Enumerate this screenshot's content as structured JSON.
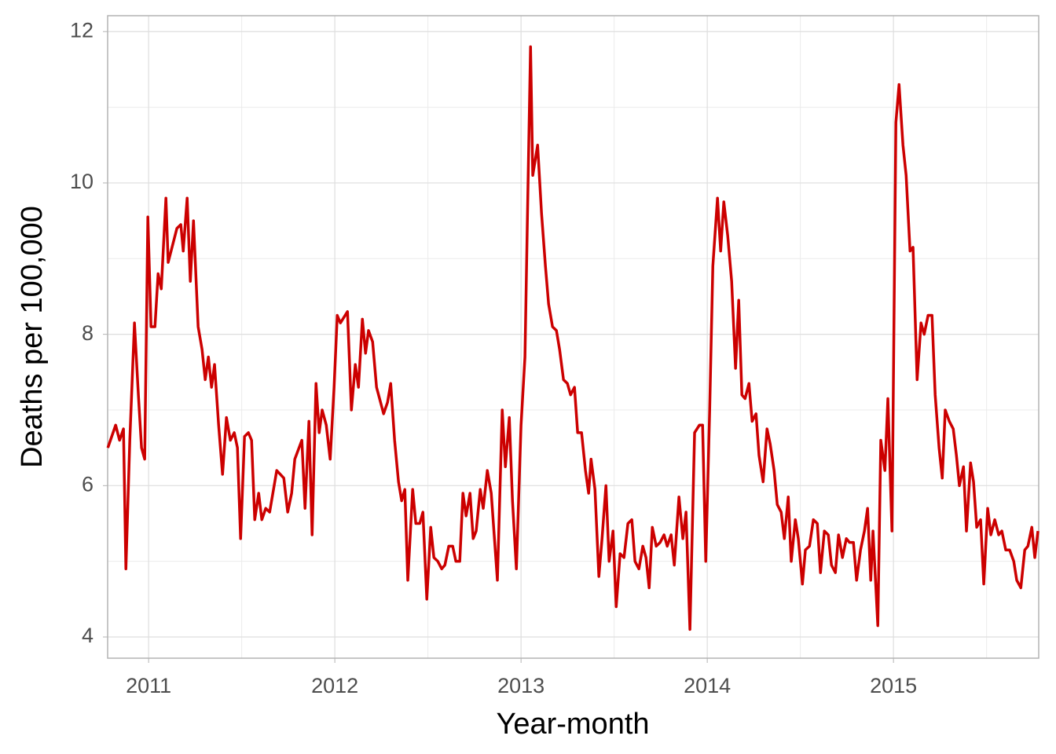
{
  "chart_data": {
    "type": "line",
    "xlabel": "Year-month",
    "ylabel": "Deaths per 100,000",
    "xlim": [
      2010.78,
      2015.78
    ],
    "ylim": [
      3.72,
      12.21
    ],
    "xticks": [
      2011,
      2012,
      2013,
      2014,
      2015
    ],
    "yticks": [
      4,
      6,
      8,
      10,
      12
    ],
    "xminor": [
      2011.5,
      2012.5,
      2013.5,
      2014.5,
      2015.5
    ],
    "yminor": [
      5,
      7,
      9,
      11
    ],
    "grid": true,
    "series": [
      {
        "color": "#cc0000",
        "x": [
          2010.781,
          2010.823,
          2010.844,
          2010.865,
          2010.878,
          2010.899,
          2010.924,
          2010.945,
          2010.962,
          2010.979,
          2010.996,
          2011.013,
          2011.034,
          2011.051,
          2011.068,
          2011.093,
          2011.105,
          2011.131,
          2011.152,
          2011.173,
          2011.186,
          2011.207,
          2011.224,
          2011.241,
          2011.266,
          2011.287,
          2011.304,
          2011.321,
          2011.338,
          2011.354,
          2011.376,
          2011.397,
          2011.418,
          2011.439,
          2011.46,
          2011.477,
          2011.494,
          2011.515,
          2011.536,
          2011.553,
          2011.57,
          2011.591,
          2011.608,
          2011.629,
          2011.65,
          2011.688,
          2011.726,
          2011.747,
          2011.768,
          2011.785,
          2011.823,
          2011.84,
          2011.861,
          2011.878,
          2011.899,
          2011.916,
          2011.932,
          2011.954,
          2011.975,
          2011.996,
          2012.013,
          2012.03,
          2012.068,
          2012.089,
          2012.11,
          2012.127,
          2012.148,
          2012.165,
          2012.181,
          2012.203,
          2012.224,
          2012.262,
          2012.283,
          2012.3,
          2012.321,
          2012.342,
          2012.359,
          2012.376,
          2012.392,
          2012.418,
          2012.435,
          2012.456,
          2012.473,
          2012.494,
          2012.515,
          2012.532,
          2012.553,
          2012.574,
          2012.591,
          2012.612,
          2012.633,
          2012.65,
          2012.671,
          2012.688,
          2012.705,
          2012.726,
          2012.743,
          2012.759,
          2012.781,
          2012.797,
          2012.819,
          2012.84,
          2012.873,
          2012.899,
          2012.916,
          2012.937,
          2012.954,
          2012.975,
          2013.0,
          2013.021,
          2013.034,
          2013.051,
          2013.063,
          2013.089,
          2013.11,
          2013.131,
          2013.148,
          2013.169,
          2013.19,
          2013.207,
          2013.228,
          2013.249,
          2013.266,
          2013.287,
          2013.304,
          2013.325,
          2013.346,
          2013.363,
          2013.376,
          2013.397,
          2013.418,
          2013.435,
          2013.456,
          2013.473,
          2013.494,
          2013.511,
          2013.532,
          2013.553,
          2013.574,
          2013.595,
          2013.612,
          2013.633,
          2013.654,
          2013.671,
          2013.688,
          2013.705,
          2013.726,
          2013.747,
          2013.768,
          2013.785,
          2013.806,
          2013.823,
          2013.848,
          2013.869,
          2013.886,
          2013.907,
          2013.932,
          2013.958,
          2013.975,
          2013.992,
          2014.013,
          2014.03,
          2014.055,
          2014.072,
          2014.089,
          2014.11,
          2014.131,
          2014.152,
          2014.169,
          2014.186,
          2014.203,
          2014.224,
          2014.241,
          2014.262,
          2014.278,
          2014.3,
          2014.321,
          2014.338,
          2014.359,
          2014.376,
          2014.397,
          2014.414,
          2014.435,
          2014.451,
          2014.473,
          2014.489,
          2014.511,
          2014.527,
          2014.549,
          2014.57,
          2014.591,
          2014.608,
          2014.629,
          2014.65,
          2014.667,
          2014.688,
          2014.705,
          2014.726,
          2014.747,
          2014.764,
          2014.785,
          2014.802,
          2014.823,
          2014.844,
          2014.861,
          2014.878,
          2014.89,
          2014.916,
          2014.932,
          2014.954,
          2014.97,
          2014.992,
          2015.013,
          2015.03,
          2015.051,
          2015.068,
          2015.089,
          2015.105,
          2015.127,
          2015.148,
          2015.165,
          2015.186,
          2015.207,
          2015.224,
          2015.245,
          2015.262,
          2015.278,
          2015.3,
          2015.321,
          2015.338,
          2015.354,
          2015.376,
          2015.392,
          2015.414,
          2015.43,
          2015.447,
          2015.468,
          2015.485,
          2015.506,
          2015.523,
          2015.544,
          2015.565,
          2015.582,
          2015.603,
          2015.624,
          2015.646,
          2015.662,
          2015.684,
          2015.705,
          2015.722,
          2015.743,
          2015.759,
          2015.776
        ],
        "values": [
          6.5,
          6.8,
          6.6,
          6.75,
          4.9,
          6.6,
          8.15,
          7.2,
          6.5,
          6.35,
          9.55,
          8.1,
          8.1,
          8.8,
          8.6,
          9.8,
          8.95,
          9.2,
          9.4,
          9.45,
          9.1,
          9.8,
          8.7,
          9.5,
          8.1,
          7.8,
          7.4,
          7.7,
          7.3,
          7.6,
          6.8,
          6.15,
          6.9,
          6.6,
          6.7,
          6.5,
          5.3,
          6.65,
          6.7,
          6.6,
          5.55,
          5.9,
          5.55,
          5.7,
          5.65,
          6.2,
          6.1,
          5.65,
          5.9,
          6.35,
          6.6,
          5.7,
          6.85,
          5.35,
          7.35,
          6.7,
          7.0,
          6.8,
          6.35,
          7.3,
          8.25,
          8.15,
          8.3,
          7.0,
          7.6,
          7.3,
          8.2,
          7.75,
          8.05,
          7.9,
          7.3,
          6.95,
          7.1,
          7.35,
          6.6,
          6.05,
          5.8,
          5.95,
          4.75,
          5.95,
          5.5,
          5.5,
          5.65,
          4.5,
          5.45,
          5.05,
          5.0,
          4.9,
          4.95,
          5.2,
          5.2,
          5.0,
          5.0,
          5.9,
          5.6,
          5.9,
          5.3,
          5.4,
          5.95,
          5.7,
          6.2,
          5.9,
          4.75,
          7.0,
          6.25,
          6.9,
          5.8,
          4.9,
          6.8,
          7.7,
          9.5,
          11.8,
          10.1,
          10.5,
          9.6,
          8.9,
          8.4,
          8.1,
          8.05,
          7.8,
          7.4,
          7.35,
          7.2,
          7.3,
          6.7,
          6.7,
          6.2,
          5.9,
          6.35,
          5.95,
          4.8,
          5.3,
          6.0,
          5.0,
          5.4,
          4.4,
          5.1,
          5.05,
          5.5,
          5.55,
          5.0,
          4.9,
          5.2,
          5.05,
          4.65,
          5.45,
          5.2,
          5.25,
          5.35,
          5.2,
          5.35,
          4.95,
          5.85,
          5.3,
          5.65,
          4.1,
          6.7,
          6.8,
          6.8,
          5.0,
          7.0,
          8.9,
          9.8,
          9.1,
          9.75,
          9.3,
          8.7,
          7.55,
          8.45,
          7.2,
          7.15,
          7.35,
          6.85,
          6.95,
          6.4,
          6.05,
          6.75,
          6.55,
          6.2,
          5.75,
          5.65,
          5.3,
          5.85,
          5.0,
          5.55,
          5.3,
          4.7,
          5.15,
          5.2,
          5.55,
          5.5,
          4.85,
          5.4,
          5.35,
          4.95,
          4.85,
          5.35,
          5.05,
          5.3,
          5.25,
          5.25,
          4.75,
          5.15,
          5.4,
          5.7,
          4.75,
          5.4,
          4.15,
          6.6,
          6.2,
          7.15,
          5.4,
          10.8,
          11.3,
          10.5,
          10.1,
          9.1,
          9.15,
          7.4,
          8.15,
          8.0,
          8.25,
          8.25,
          7.2,
          6.5,
          6.1,
          7.0,
          6.85,
          6.75,
          6.4,
          6.0,
          6.25,
          5.4,
          6.3,
          6.05,
          5.45,
          5.55,
          4.7,
          5.7,
          5.35,
          5.55,
          5.35,
          5.4,
          5.15,
          5.15,
          5.0,
          4.75,
          4.65,
          5.15,
          5.2,
          5.45,
          5.05,
          5.4
        ]
      }
    ]
  }
}
